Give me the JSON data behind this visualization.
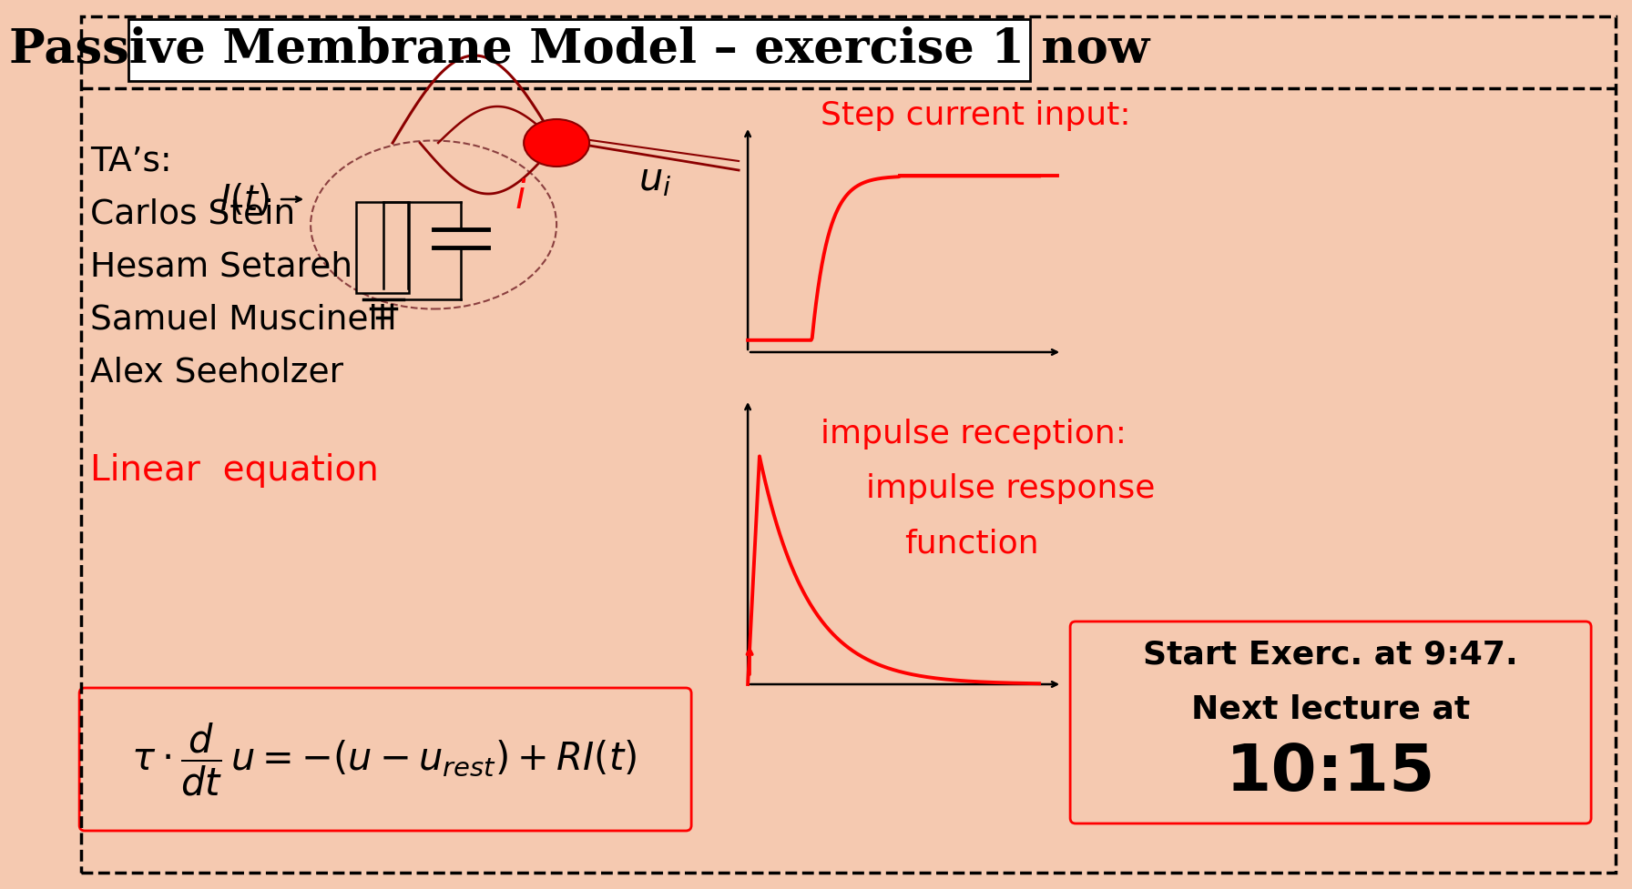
{
  "title": "Passive Membrane Model – exercise 1 now",
  "bg_color": "#F5C9B0",
  "red_color": "#CC0000",
  "dark_red": "#8B0000",
  "ta_lines": [
    "TA’s:",
    "Carlos Stein",
    "Hesam Setareh",
    "Samuel Muscinelli",
    "Alex Seeholzer"
  ],
  "linear_eq_label": "Linear  equation",
  "start_text1": "Start Exerc. at 9:47.",
  "start_text2": "Next lecture at",
  "start_text3": "10:15",
  "step_label": "Step current input:",
  "impulse_label1": "impulse reception:",
  "impulse_label2": "impulse response",
  "impulse_label3": "function"
}
